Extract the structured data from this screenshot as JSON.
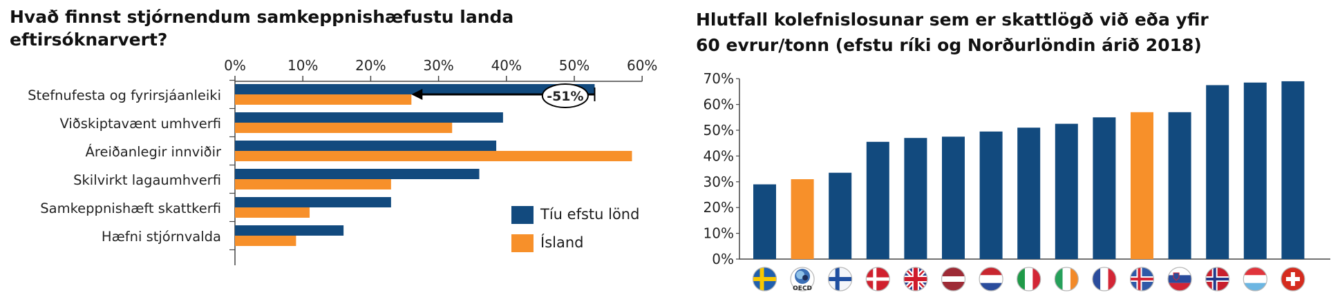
{
  "chart_data": [
    {
      "type": "bar",
      "orientation": "horizontal",
      "title": "Hvað finnst stjórnendum samkeppnishæfustu landa eftirsóknarvert?",
      "categories": [
        "Stefnufesta og fyrirsjáanleiki",
        "Viðskiptavænt umhverfi",
        "Áreiðanlegir innviðir",
        "Skilvirkt lagaumhverfi",
        "Samkeppnishæft skattkerfi",
        "Hæfni stjórnvalda"
      ],
      "series": [
        {
          "name": "Tíu efstu lönd",
          "color": "#124a7e",
          "values": [
            53,
            39.5,
            38.5,
            36,
            23,
            16
          ]
        },
        {
          "name": "Ísland",
          "color": "#f7902a",
          "values": [
            26,
            32,
            58.5,
            23,
            11,
            9
          ]
        }
      ],
      "xlim": [
        0,
        60
      ],
      "xticks": [
        "0%",
        "10%",
        "20%",
        "30%",
        "40%",
        "50%",
        "60%"
      ],
      "tick_values": [
        0,
        10,
        20,
        30,
        40,
        50,
        60
      ],
      "annotation": {
        "text": "-51%",
        "category": "Stefnufesta og fyrirsjáanleiki",
        "from": 53,
        "to": 26
      },
      "legend_position": "bottom-right"
    },
    {
      "type": "bar",
      "title": "Hlutfall kolefnislosunar sem er skattlögð við eða yfir 60 evrur/tonn (efstu ríki og Norðurlöndin árið 2018)",
      "categories": [
        "Svíþjóð",
        "OECD",
        "Finnland",
        "Danmörk",
        "Bretland",
        "Lettland",
        "Holland",
        "Ítalía",
        "Írland",
        "Frakkland",
        "Ísland",
        "Slóvenía",
        "Noregur",
        "Lúxemborg",
        "Sviss"
      ],
      "values": [
        29,
        31,
        33.5,
        45.5,
        47,
        47.5,
        49.5,
        51,
        52.5,
        55,
        57,
        57,
        67.5,
        68.5,
        69
      ],
      "colors": [
        "#124a7e",
        "#f7902a",
        "#124a7e",
        "#124a7e",
        "#124a7e",
        "#124a7e",
        "#124a7e",
        "#124a7e",
        "#124a7e",
        "#124a7e",
        "#f7902a",
        "#124a7e",
        "#124a7e",
        "#124a7e",
        "#124a7e"
      ],
      "flags": [
        "flag-sweden",
        "oecd-logo",
        "flag-finland",
        "flag-denmark",
        "flag-uk",
        "flag-latvia",
        "flag-netherlands",
        "flag-italy",
        "flag-ireland",
        "flag-france",
        "flag-iceland",
        "flag-slovenia",
        "flag-norway",
        "flag-luxembourg",
        "flag-switzerland"
      ],
      "oecd_label": "OECD",
      "ylim": [
        0,
        70
      ],
      "yticks": [
        "0%",
        "10%",
        "20%",
        "30%",
        "40%",
        "50%",
        "60%",
        "70%"
      ],
      "tick_values": [
        0,
        10,
        20,
        30,
        40,
        50,
        60,
        70
      ],
      "grid": false
    }
  ]
}
